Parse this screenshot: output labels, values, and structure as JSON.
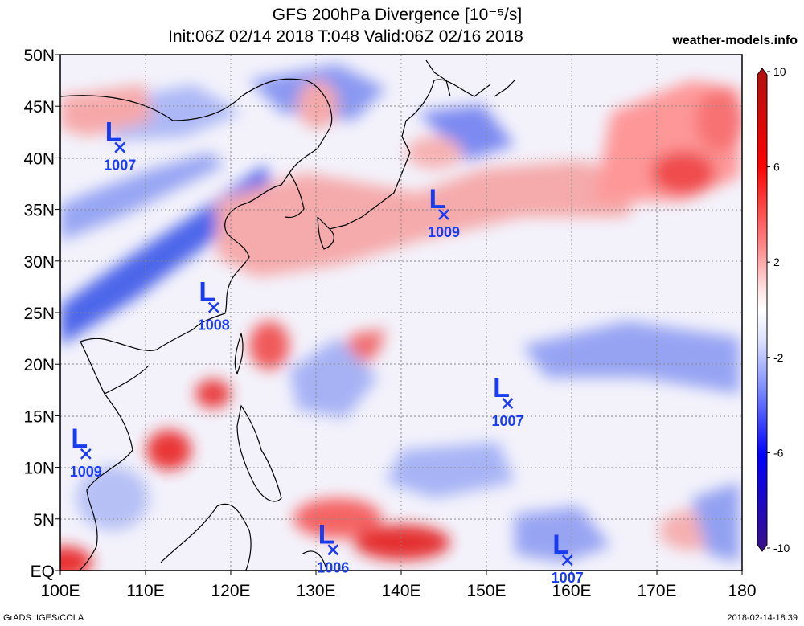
{
  "header": {
    "title": "GFS 200hPa Divergence [10⁻⁵/s]",
    "subtitle": "Init:06Z 02/14 2018 T:048 Valid:06Z 02/16 2018",
    "site": "weather-models.info"
  },
  "axes": {
    "lat_labels": [
      "EQ",
      "5N",
      "10N",
      "15N",
      "20N",
      "25N",
      "30N",
      "35N",
      "40N",
      "45N",
      "50N"
    ],
    "lon_labels": [
      "100E",
      "110E",
      "120E",
      "130E",
      "140E",
      "150E",
      "160E",
      "170E",
      "180"
    ]
  },
  "colorbar": {
    "labels": [
      "10",
      "6",
      "2",
      "-2",
      "-6",
      "-10"
    ],
    "colors": [
      "#3b0f8a",
      "#0000ff",
      "#6a7dfa",
      "#cfd7ff",
      "#ffffff",
      "#ffd0d0",
      "#ff6a6a",
      "#ff0000",
      "#b01010"
    ]
  },
  "lows": [
    {
      "letter": "L",
      "pressure": "1007",
      "lon": 107,
      "lat": 41
    },
    {
      "letter": "L",
      "pressure": "1009",
      "lon": 145,
      "lat": 34.5
    },
    {
      "letter": "L",
      "pressure": "1008",
      "lon": 118,
      "lat": 25.5
    },
    {
      "letter": "L",
      "pressure": "1007",
      "lon": 152.5,
      "lat": 16.2
    },
    {
      "letter": "L",
      "pressure": "1009",
      "lon": 103,
      "lat": 11.3
    },
    {
      "letter": "L",
      "pressure": "1006",
      "lon": 132,
      "lat": 2
    },
    {
      "letter": "L",
      "pressure": "1007",
      "lon": 159.5,
      "lat": 1
    }
  ],
  "footer": {
    "left": "GrADS: IGES/COLA",
    "right": "2018-02-14-18:39"
  }
}
